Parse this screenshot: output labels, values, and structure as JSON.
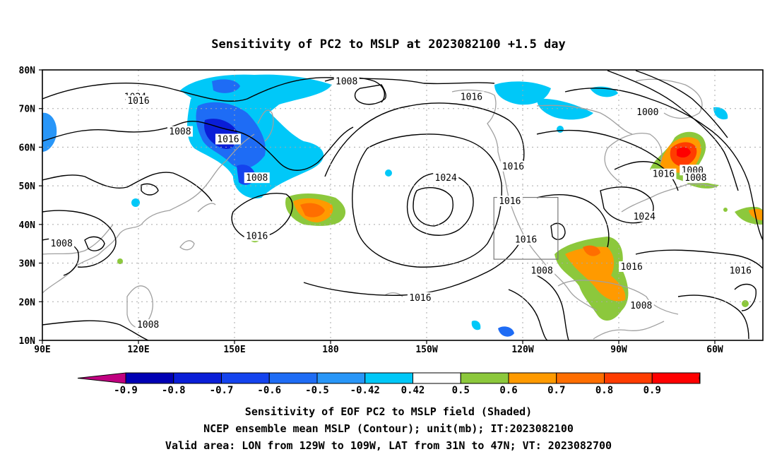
{
  "title": "Sensitivity of PC2 to MSLP at 2023082100 +1.5 day",
  "map": {
    "lat_ticks": [
      "80N",
      "70N",
      "60N",
      "50N",
      "40N",
      "30N",
      "20N",
      "10N"
    ],
    "lon_ticks": [
      "90E",
      "120E",
      "150E",
      "180",
      "150W",
      "120W",
      "90W",
      "60W"
    ],
    "contour_labels": [
      {
        "text": "1008",
        "lon": -175,
        "lat": 77
      },
      {
        "text": "1024",
        "lon": 119,
        "lat": 73
      },
      {
        "text": "1016",
        "lon": -136,
        "lat": 73
      },
      {
        "text": "1000",
        "lon": -81,
        "lat": 69
      },
      {
        "text": "1008",
        "lon": 133,
        "lat": 64
      },
      {
        "text": "1016",
        "lon": 148,
        "lat": 62
      },
      {
        "text": "1016",
        "lon": -123,
        "lat": 55
      },
      {
        "text": "1000",
        "lon": -67,
        "lat": 54
      },
      {
        "text": "1016",
        "lon": -76,
        "lat": 53
      },
      {
        "text": "1008",
        "lon": -66,
        "lat": 52
      },
      {
        "text": "1008",
        "lon": 157,
        "lat": 52
      },
      {
        "text": "1024",
        "lon": -144,
        "lat": 52
      },
      {
        "text": "1016",
        "lon": -124,
        "lat": 46
      },
      {
        "text": "1024",
        "lon": -82,
        "lat": 42
      },
      {
        "text": "1016",
        "lon": 157,
        "lat": 37
      },
      {
        "text": "1016",
        "lon": -119,
        "lat": 36
      },
      {
        "text": "1008",
        "lon": 96,
        "lat": 35
      },
      {
        "text": "1008",
        "lon": -114,
        "lat": 28
      },
      {
        "text": "1016",
        "lon": -86,
        "lat": 29
      },
      {
        "text": "1016",
        "lon": -52,
        "lat": 28
      },
      {
        "text": "1016",
        "lon": -152,
        "lat": 21
      },
      {
        "text": "1008",
        "lon": -83,
        "lat": 19
      },
      {
        "text": "1008",
        "lon": 123,
        "lat": 14
      },
      {
        "text": "1016",
        "lon": 120,
        "lat": 72
      }
    ],
    "valid_box": {
      "lon_min": -129,
      "lon_max": -109,
      "lat_min": 31,
      "lat_max": 47
    }
  },
  "colorbar": {
    "labels": [
      "-0.9",
      "-0.8",
      "-0.7",
      "-0.6",
      "-0.5",
      "-0.42",
      "0.42",
      "0.5",
      "0.6",
      "0.7",
      "0.8",
      "0.9"
    ],
    "colors": [
      "#c00080",
      "#0000b4",
      "#0a1ed7",
      "#1443ee",
      "#1e6cf5",
      "#2896f8",
      "#00c8f8",
      "#ffffff",
      "#8cc83c",
      "#ff9a00",
      "#ff6e00",
      "#ff3c00",
      "#ff0000",
      "#ff99c8"
    ]
  },
  "captions": {
    "line1": "Sensitivity of EOF PC2 to MSLP field (Shaded)",
    "line2": "NCEP ensemble mean MSLP (Contour); unit(mb); IT:2023082100",
    "line3": "Valid area: LON from 129W to 109W, LAT from 31N to 47N; VT: 2023082700"
  }
}
